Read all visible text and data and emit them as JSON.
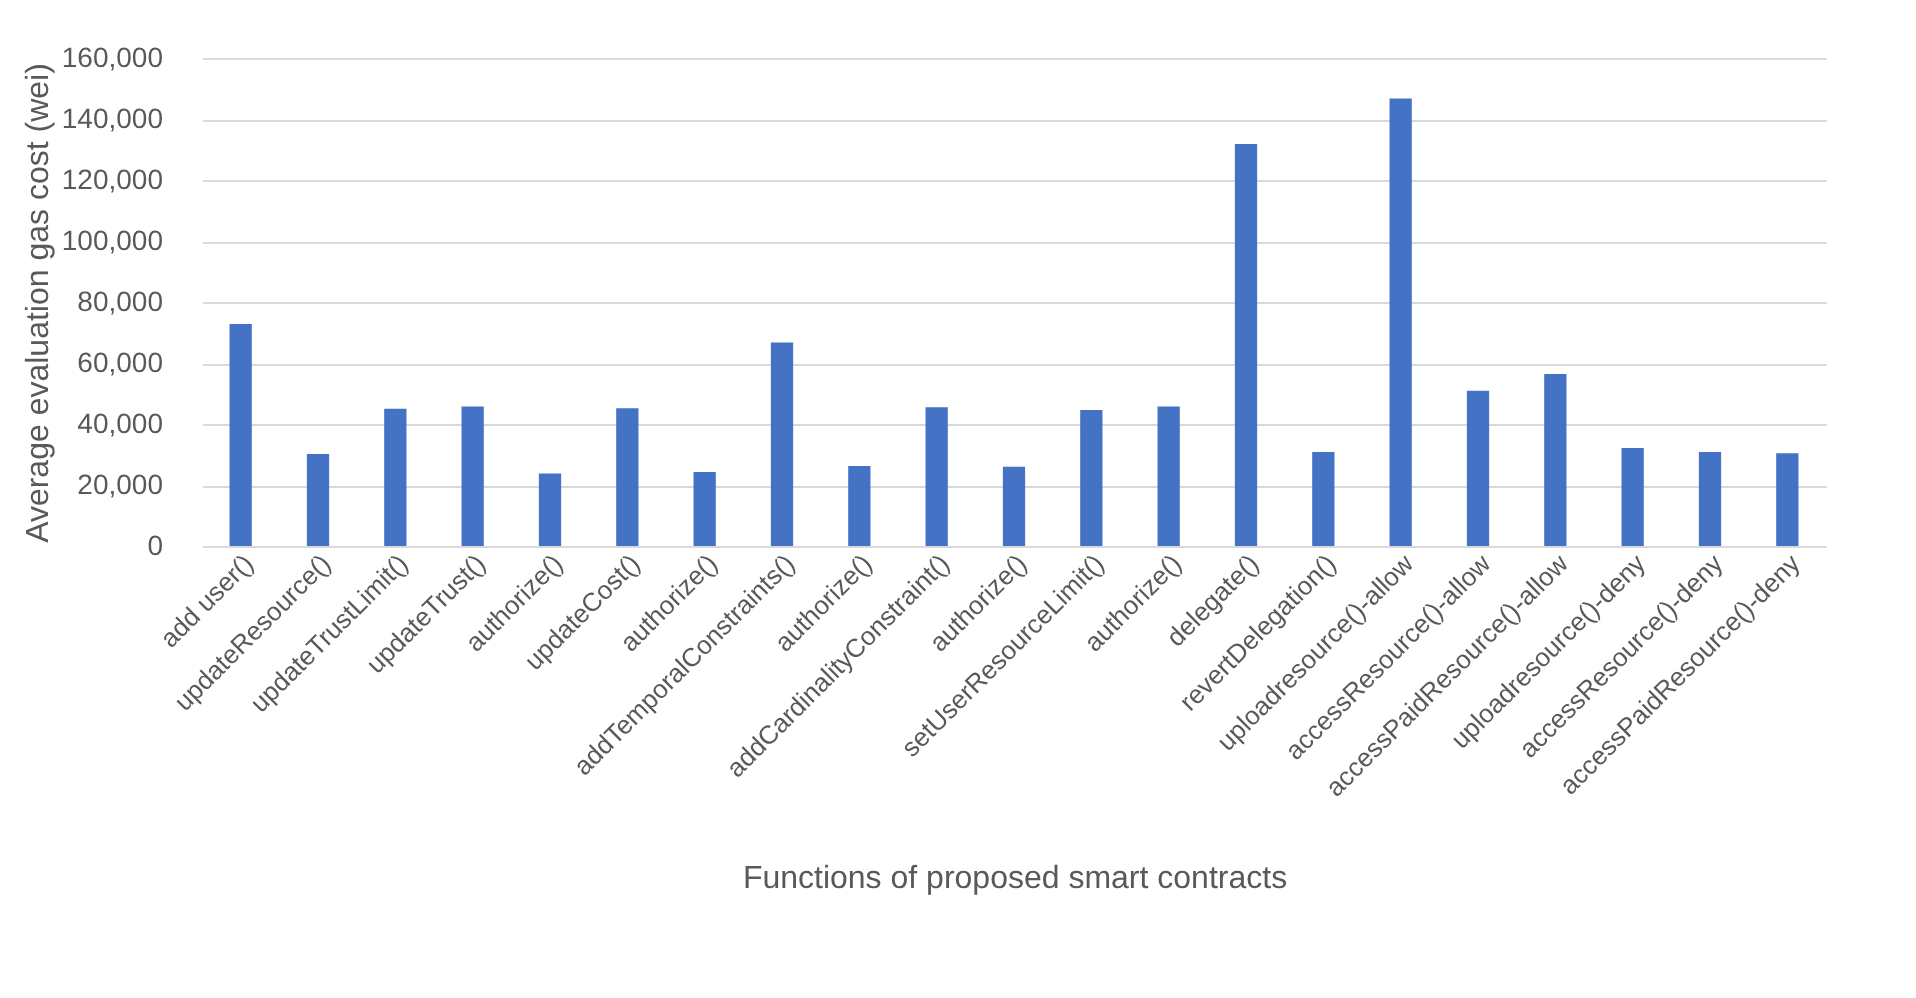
{
  "chart_data": {
    "type": "bar",
    "xlabel": "Functions of proposed smart contracts",
    "ylabel": "Average  evaluation gas cost (wei)",
    "categories": [
      "add user()",
      "updateResource()",
      "updateTrustLimit()",
      "updateTrust()",
      "authorize()",
      "updateCost()",
      "authorize()",
      "addTemporalConstraints()",
      "authorize()",
      "addCardinalityConstraint()",
      "authorize()",
      "setUserResourceLimit()",
      "authorize()",
      "delegate()",
      "revertDelegation()",
      "uploadresource()-allow",
      "accessResource()-allow",
      "accessPaidResource()-allow",
      "uploadresource()-deny",
      "accessResource()-deny",
      "accessPaidResource()-deny"
    ],
    "values": [
      72800,
      30200,
      45000,
      45700,
      23800,
      45200,
      24300,
      66700,
      26200,
      45500,
      26000,
      44600,
      45700,
      131800,
      30800,
      146700,
      50900,
      56400,
      32100,
      30800,
      30400
    ],
    "color": "#4472c4",
    "ylim": [
      0,
      160000
    ],
    "yticks": [
      0,
      {
        "value": 20000,
        "label": "20,000"
      },
      {
        "value": 40000,
        "label": "40,000"
      },
      {
        "value": 60000,
        "label": "60,000"
      },
      {
        "value": 80000,
        "label": "80,000"
      },
      {
        "value": 100000,
        "label": "100,000"
      },
      {
        "value": 120000,
        "label": "120,000"
      },
      {
        "value": 140000,
        "label": "140,000"
      },
      {
        "value": 160000,
        "label": "160,000"
      }
    ],
    "grid": "y"
  }
}
